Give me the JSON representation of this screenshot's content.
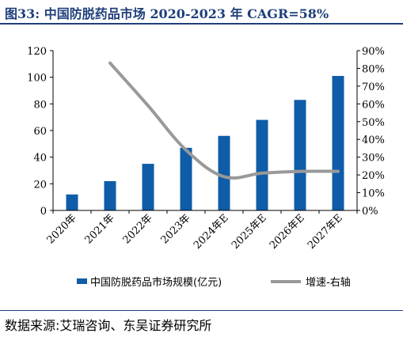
{
  "figure": {
    "title": "图33:  中国防脱药品市场 2020-2023 年 CAGR=58%",
    "source": "数据来源:艾瑞咨询、东吴证券研究所"
  },
  "colors": {
    "bar": "#0f5ca8",
    "line": "#999999",
    "title": "#1f3f7a"
  },
  "chart_data": {
    "type": "bar",
    "title": "图33:  中国防脱药品市场 2020-2023 年 CAGR=58%",
    "categories": [
      "2020年",
      "2021年",
      "2022年",
      "2023年",
      "2024年E",
      "2025年E",
      "2026年E",
      "2027年E"
    ],
    "series": [
      {
        "name": "中国防脱药品市场规模(亿元)",
        "type": "bar",
        "axis": "left",
        "values": [
          12,
          22,
          35,
          47,
          56,
          68,
          83,
          101
        ]
      },
      {
        "name": "增速-右轴",
        "type": "line",
        "axis": "right",
        "values": [
          null,
          83,
          59,
          34,
          19,
          21,
          22,
          22
        ]
      }
    ],
    "y_left": {
      "min": 0,
      "max": 120,
      "ticks": [
        0,
        20,
        40,
        60,
        80,
        100,
        120
      ]
    },
    "y_right": {
      "min": 0,
      "max": 90,
      "ticks": [
        "0%",
        "10%",
        "20%",
        "30%",
        "40%",
        "50%",
        "60%",
        "70%",
        "80%",
        "90%"
      ]
    },
    "grid": false,
    "legend_position": "bottom"
  }
}
